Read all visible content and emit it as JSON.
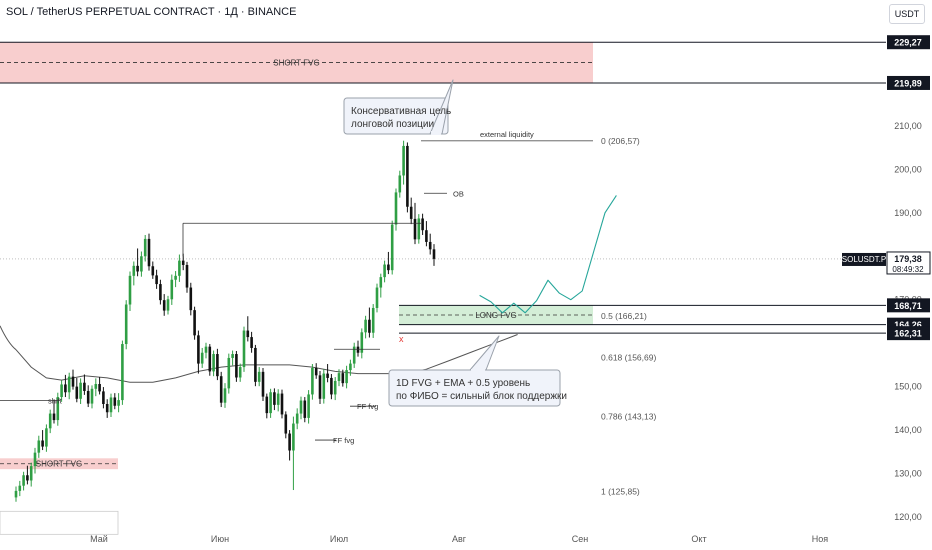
{
  "header": {
    "symbol_title": "SOL / TetherUS PERPETUAL CONTRACT · 1Д · BINANCE",
    "currency": "USDT"
  },
  "chart_data": {
    "type": "candlestick",
    "y_scale": {
      "min": 117,
      "max": 233
    },
    "price_ticks": [
      "210,00",
      "200,00",
      "190,00",
      "180,00",
      "170,00",
      "150,00",
      "140,00",
      "130,00",
      "120,00"
    ],
    "price_tick_values": [
      210,
      200,
      190,
      180,
      170,
      150,
      140,
      130,
      120
    ],
    "time_labels": [
      "Май",
      "Июн",
      "Июл",
      "Авг",
      "Сен",
      "Окт",
      "Ноя"
    ],
    "price_badges": [
      {
        "label": "229,27",
        "value": 229.27
      },
      {
        "label": "219,89",
        "value": 219.89
      },
      {
        "label": "168,71",
        "value": 168.71
      },
      {
        "label": "164,26",
        "value": 164.26
      },
      {
        "label": "162,31",
        "value": 162.31
      }
    ],
    "current_price": {
      "symbol": "SOLUSDT.P",
      "price": "179,38",
      "countdown": "08:49:32",
      "value": 179.38
    },
    "fib_levels": [
      {
        "label": "0 (206,57)",
        "value": 206.57
      },
      {
        "label": "0.5 (166,21)",
        "value": 166.21
      },
      {
        "label": "0.618 (156,69)",
        "value": 156.69
      },
      {
        "label": "0.786 (143,13)",
        "value": 143.13
      },
      {
        "label": "1 (125,85)",
        "value": 125.85
      }
    ],
    "zones": [
      {
        "label": "SHORT FVG",
        "top": 229.27,
        "bottom": 219.89,
        "color": "#f7c6c6"
      },
      {
        "label": "SHORT FVG",
        "top": 133.5,
        "bottom": 131,
        "color": "#f7c6c6"
      },
      {
        "label": "LONG FVG",
        "top": 168.71,
        "bottom": 164.26,
        "color": "#cdebd0"
      }
    ],
    "annotations": {
      "external_liquidity": "external liquidity",
      "ob": "OB",
      "shift": "shift",
      "ff_fvg_1": "FF fvg",
      "ff_fvg_2": "FF fvg",
      "x_mark": "x",
      "callout_top": [
        "Консервативная цель",
        "лонговой позиции"
      ],
      "callout_bottom": [
        "1D FVG + EMA + 0.5 уровень",
        "по ФИБО = сильный блок поддержки"
      ]
    },
    "ema": [
      [
        0,
        158.5
      ],
      [
        4,
        154.5
      ],
      [
        8,
        152
      ],
      [
        12,
        151.5
      ],
      [
        18,
        152.5
      ],
      [
        24,
        152
      ],
      [
        30,
        151
      ],
      [
        36,
        151
      ],
      [
        42,
        152
      ],
      [
        48,
        153.5
      ],
      [
        54,
        154.5
      ],
      [
        60,
        155
      ],
      [
        66,
        155
      ],
      [
        72,
        155
      ],
      [
        78,
        154.5
      ],
      [
        84,
        153.5
      ],
      [
        90,
        153
      ],
      [
        96,
        153
      ],
      [
        102,
        153
      ],
      [
        108,
        154
      ],
      [
        114,
        156
      ],
      [
        120,
        158
      ],
      [
        126,
        160
      ],
      [
        132,
        162
      ]
    ],
    "projection": [
      [
        122,
        171
      ],
      [
        125,
        169.5
      ],
      [
        128,
        167
      ],
      [
        131,
        169.2
      ],
      [
        134,
        167
      ],
      [
        137,
        169.8
      ],
      [
        140,
        174.5
      ],
      [
        143,
        171.5
      ],
      [
        146,
        170
      ],
      [
        149,
        172
      ],
      [
        152,
        181
      ],
      [
        155,
        190
      ],
      [
        158,
        194
      ]
    ],
    "candles": [
      [
        124.5,
        127.0,
        123.5,
        126.0
      ],
      [
        126.0,
        128.3,
        124.8,
        127.2
      ],
      [
        127.2,
        130.4,
        126.1,
        129.6
      ],
      [
        129.6,
        131.8,
        127.5,
        128.4
      ],
      [
        128.4,
        132.5,
        127.0,
        131.7
      ],
      [
        131.7,
        135.9,
        130.0,
        134.8
      ],
      [
        134.8,
        138.7,
        133.6,
        137.6
      ],
      [
        137.6,
        140.0,
        135.4,
        136.2
      ],
      [
        136.2,
        141.3,
        135.0,
        140.4
      ],
      [
        140.4,
        144.7,
        139.3,
        143.8
      ],
      [
        143.8,
        146.9,
        141.5,
        142.3
      ],
      [
        142.3,
        148.6,
        141.0,
        147.6
      ],
      [
        147.6,
        151.4,
        146.5,
        150.5
      ],
      [
        150.5,
        152.7,
        147.6,
        148.7
      ],
      [
        148.7,
        153.2,
        147.1,
        152.3
      ],
      [
        152.3,
        153.9,
        149.3,
        150.0
      ],
      [
        150.0,
        152.0,
        146.4,
        147.2
      ],
      [
        147.2,
        151.9,
        146.0,
        150.9
      ],
      [
        150.9,
        152.8,
        148.1,
        149.0
      ],
      [
        149.0,
        150.3,
        145.3,
        146.1
      ],
      [
        146.1,
        150.3,
        145.0,
        149.5
      ],
      [
        149.5,
        151.9,
        147.8,
        150.6
      ],
      [
        150.6,
        152.2,
        148.2,
        148.9
      ],
      [
        148.9,
        149.9,
        145.0,
        146.0
      ],
      [
        146.0,
        147.1,
        142.8,
        144.1
      ],
      [
        144.1,
        148.4,
        143.0,
        147.5
      ],
      [
        147.5,
        148.5,
        144.8,
        145.6
      ],
      [
        145.6,
        148.5,
        144.1,
        146.9
      ],
      [
        146.9,
        160.6,
        145.8,
        159.8
      ],
      [
        159.8,
        169.9,
        158.6,
        168.9
      ],
      [
        168.9,
        176.5,
        167.4,
        175.5
      ],
      [
        175.5,
        178.8,
        173.3,
        177.8
      ],
      [
        177.8,
        181.8,
        175.4,
        176.5
      ],
      [
        176.5,
        181.1,
        175.3,
        180.0
      ],
      [
        180.0,
        184.9,
        178.8,
        184.0
      ],
      [
        184.0,
        185.2,
        176.7,
        177.7
      ],
      [
        177.7,
        178.8,
        174.8,
        175.6
      ],
      [
        175.6,
        176.9,
        172.5,
        173.6
      ],
      [
        173.6,
        174.6,
        168.9,
        169.9
      ],
      [
        169.9,
        171.3,
        166.3,
        167.5
      ],
      [
        167.5,
        170.9,
        166.6,
        170.1
      ],
      [
        170.1,
        175.8,
        168.8,
        174.6
      ],
      [
        174.6,
        176.6,
        172.9,
        175.5
      ],
      [
        175.5,
        180.4,
        174.1,
        179.0
      ],
      [
        179.0,
        180.6,
        176.8,
        178.0
      ],
      [
        178.0,
        178.7,
        171.6,
        172.8
      ],
      [
        172.8,
        173.9,
        166.4,
        167.6
      ],
      [
        167.6,
        168.4,
        160.8,
        161.8
      ],
      [
        161.8,
        162.9,
        153.0,
        155.3
      ],
      [
        155.3,
        158.9,
        154.3,
        157.8
      ],
      [
        157.8,
        160.1,
        156.5,
        159.2
      ],
      [
        159.2,
        159.8,
        152.5,
        153.5
      ],
      [
        153.5,
        158.3,
        152.4,
        157.5
      ],
      [
        157.5,
        158.7,
        151.5,
        152.4
      ],
      [
        152.4,
        153.4,
        145.3,
        146.3
      ],
      [
        146.3,
        150.8,
        145.1,
        149.6
      ],
      [
        149.6,
        157.6,
        148.4,
        156.6
      ],
      [
        156.6,
        158.3,
        154.9,
        157.5
      ],
      [
        157.5,
        158.2,
        151.1,
        152.1
      ],
      [
        152.1,
        155.3,
        151.1,
        154.5
      ],
      [
        154.5,
        163.8,
        153.4,
        162.9
      ],
      [
        162.9,
        166.2,
        160.4,
        161.4
      ],
      [
        161.4,
        162.6,
        157.8,
        158.9
      ],
      [
        158.9,
        159.6,
        150.1,
        151.1
      ],
      [
        151.1,
        154.5,
        150.1,
        153.4
      ],
      [
        153.4,
        154.3,
        146.7,
        147.7
      ],
      [
        147.7,
        148.4,
        142.7,
        143.9
      ],
      [
        143.9,
        149.5,
        142.8,
        148.7
      ],
      [
        148.7,
        149.6,
        144.6,
        145.8
      ],
      [
        145.8,
        149.4,
        144.3,
        148.4
      ],
      [
        148.4,
        149.3,
        142.7,
        143.6
      ],
      [
        143.6,
        144.3,
        138.1,
        139.2
      ],
      [
        139.2,
        140.0,
        133.0,
        135.3
      ],
      [
        135.3,
        143.1,
        126.2,
        141.5
      ],
      [
        141.5,
        145.0,
        140.2,
        143.8
      ],
      [
        143.8,
        147.7,
        142.5,
        146.8
      ],
      [
        146.8,
        147.6,
        141.8,
        142.8
      ],
      [
        142.8,
        149.2,
        141.5,
        148.2
      ],
      [
        148.2,
        155.2,
        147.0,
        154.3
      ],
      [
        154.3,
        155.4,
        151.8,
        152.6
      ],
      [
        152.6,
        153.6,
        146.0,
        147.2
      ],
      [
        147.2,
        154.0,
        146.1,
        153.0
      ],
      [
        153.0,
        155.2,
        151.0,
        152.0
      ],
      [
        152.0,
        152.9,
        147.1,
        148.2
      ],
      [
        148.2,
        152.2,
        146.9,
        151.3
      ],
      [
        151.3,
        154.0,
        150.1,
        153.1
      ],
      [
        153.1,
        153.9,
        150.0,
        150.8
      ],
      [
        150.8,
        154.8,
        149.6,
        153.8
      ],
      [
        153.8,
        156.2,
        152.5,
        155.3
      ],
      [
        155.3,
        160.1,
        154.3,
        159.2
      ],
      [
        159.2,
        160.6,
        156.9,
        157.8
      ],
      [
        157.8,
        163.4,
        156.5,
        162.5
      ],
      [
        162.5,
        166.3,
        161.1,
        165.4
      ],
      [
        165.4,
        168.2,
        161.3,
        162.4
      ],
      [
        162.4,
        169.0,
        161.2,
        168.1
      ],
      [
        168.1,
        173.7,
        167.1,
        172.8
      ],
      [
        172.8,
        176.0,
        170.5,
        175.2
      ],
      [
        175.2,
        179.0,
        174.0,
        178.1
      ],
      [
        178.1,
        181.0,
        175.9,
        176.8
      ],
      [
        176.8,
        188.2,
        175.8,
        187.3
      ],
      [
        187.3,
        195.6,
        185.9,
        194.7
      ],
      [
        194.7,
        199.7,
        193.5,
        198.6
      ],
      [
        198.6,
        206.6,
        196.5,
        205.4
      ],
      [
        205.4,
        206.2,
        190.1,
        191.4
      ],
      [
        191.4,
        193.5,
        187.4,
        188.6
      ],
      [
        188.6,
        192.3,
        182.8,
        183.9
      ],
      [
        183.9,
        189.7,
        182.9,
        188.7
      ],
      [
        188.7,
        189.8,
        184.9,
        186.0
      ],
      [
        186.0,
        188.1,
        182.3,
        183.3
      ],
      [
        183.3,
        185.2,
        180.4,
        181.6
      ],
      [
        181.6,
        182.8,
        177.8,
        179.4
      ]
    ]
  }
}
